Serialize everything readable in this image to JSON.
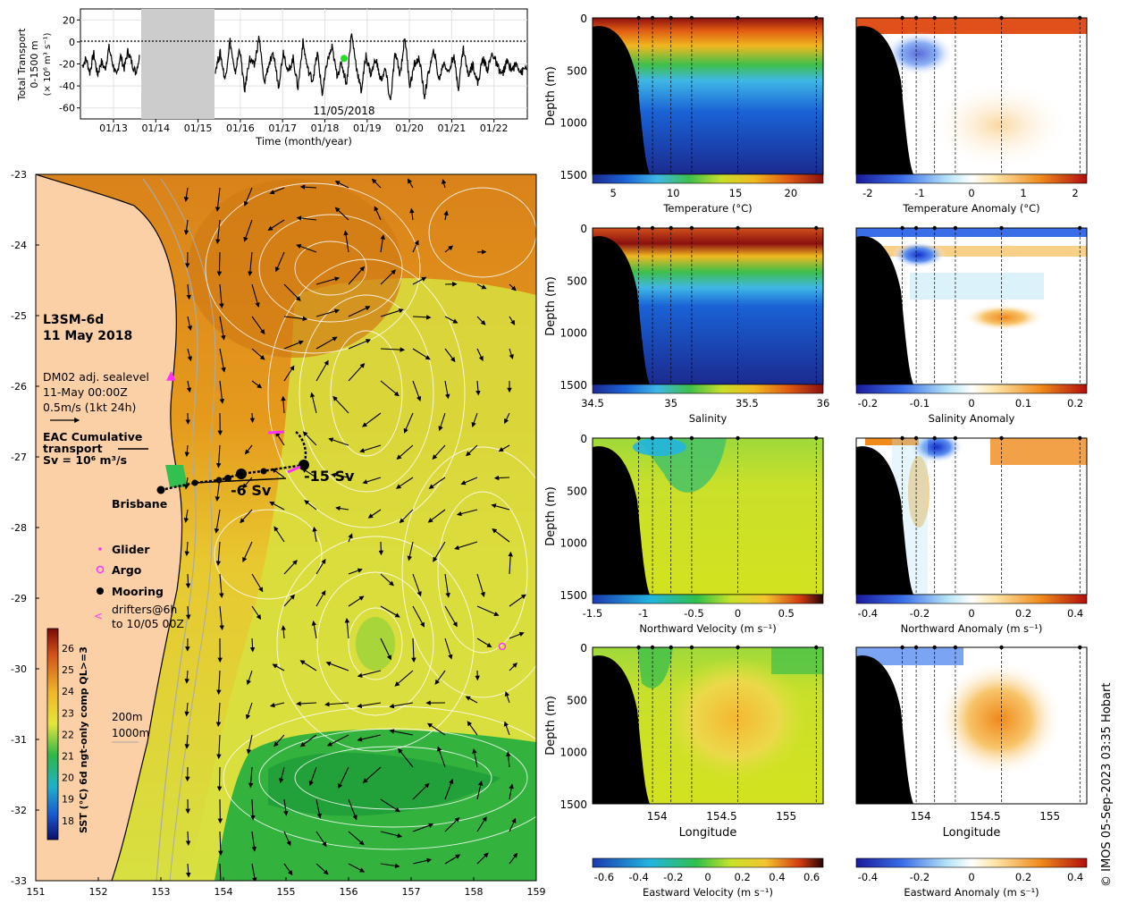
{
  "credit": "© IMOS 05-Sep-2023 03:35 Hobart",
  "colors": {
    "land": "#fcd0a6",
    "sst_warm": "#d98a14",
    "sst_mid": "#e5e35a",
    "sst_cool": "#2ea53a",
    "seamask": "#000000",
    "glider": "#ff33ff",
    "argo": "#ff33ff",
    "mooring": "#000000",
    "gap": "#cccccc"
  },
  "transport": {
    "ylabel_lines": [
      "Total Transport",
      "0-1500 m",
      "(× 10⁶ m³ s⁻¹)"
    ],
    "xlabel": "Time (month/year)",
    "date_label": "11/05/2018",
    "yticks": [
      20,
      0,
      -20,
      -40,
      -60
    ],
    "xticks": [
      "01/13",
      "01/14",
      "01/15",
      "01/16",
      "01/17",
      "01/18",
      "01/19",
      "01/20",
      "01/21",
      "01/22"
    ]
  },
  "map": {
    "title_lines": [
      "L3SM-6d",
      "11 May 2018"
    ],
    "vector_text": [
      "DM02 adj. sealevel",
      "11-May 00:00Z",
      "0.5m/s (1kt 24h)"
    ],
    "eac_lines": [
      "EAC Cumulative",
      "transport",
      "Sv = 10⁶ m³/s"
    ],
    "city": "Brisbane",
    "transport_labels": [
      "-6 Sv",
      "-15 Sv"
    ],
    "legend": [
      "Glider",
      "Argo",
      "Mooring",
      "drifters@6h",
      "to 10/05 00Z"
    ],
    "depth_legend": [
      "200m",
      "1000m"
    ],
    "colorbar_label": "SST (°C) 6d ngt-only comp QL>=3",
    "colorbar_ticks": [
      "26",
      "25",
      "24",
      "23",
      "22",
      "21",
      "20",
      "19",
      "18"
    ],
    "lat_ticks": [
      "-23",
      "-24",
      "-25",
      "-26",
      "-27",
      "-28",
      "-29",
      "-30",
      "-31",
      "-32",
      "-33"
    ],
    "lon_ticks": [
      "151",
      "152",
      "153",
      "154",
      "155",
      "156",
      "157",
      "158",
      "159"
    ]
  },
  "sections": {
    "depth_label": "Depth (m)",
    "depth_ticks": [
      "0",
      "500",
      "1000",
      "1500"
    ],
    "longitude_label": "Longitude",
    "longitude_ticks": [
      "154",
      "154.5",
      "155"
    ],
    "panels": [
      {
        "label": "Temperature (°C)",
        "ticks": [
          "5",
          "10",
          "15",
          "20"
        ]
      },
      {
        "label": "Temperature Anomaly (°C)",
        "ticks": [
          "-2",
          "-1",
          "0",
          "1",
          "2"
        ]
      },
      {
        "label": "Salinity",
        "ticks": [
          "34.5",
          "35",
          "35.5",
          "36"
        ]
      },
      {
        "label": "Salinity Anomaly",
        "ticks": [
          "-0.2",
          "-0.1",
          "0",
          "0.1",
          "0.2"
        ]
      },
      {
        "label": "Northward Velocity (m s⁻¹)",
        "ticks": [
          "-1.5",
          "-1",
          "-0.5",
          "0",
          "0.5"
        ]
      },
      {
        "label": "Northward Anomaly (m s⁻¹)",
        "ticks": [
          "-0.4",
          "-0.2",
          "0",
          "0.2",
          "0.4"
        ]
      },
      {
        "label": "Eastward Velocity (m s⁻¹)",
        "ticks": [
          "-0.6",
          "-0.4",
          "-0.2",
          "0",
          "0.2",
          "0.4",
          "0.6"
        ]
      },
      {
        "label": "Eastward Anomaly (m s⁻¹)",
        "ticks": [
          "-0.4",
          "-0.2",
          "0",
          "0.2",
          "0.4"
        ]
      }
    ]
  },
  "chart_data": {
    "type": "line",
    "title": "",
    "xlabel": "Time (month/year)",
    "ylabel": "Total Transport 0-1500 m (× 10⁶ m³ s⁻¹)",
    "ylim": [
      -70,
      30
    ],
    "x_range": [
      "2012-04",
      "2022-07"
    ],
    "gap": [
      "2013-10",
      "2015-04"
    ],
    "highlight": {
      "date": "2018-05-11",
      "value": -15
    },
    "series": [
      {
        "values": [
          -22,
          -15,
          -28,
          -10,
          -30,
          -18,
          -25,
          -5,
          -20,
          -32,
          -12,
          -24,
          -8,
          -19,
          -28,
          -14
        ]
      },
      {
        "values": [
          -25,
          -10,
          -35,
          2,
          -30,
          -5,
          -45,
          -15,
          -22,
          5,
          -38,
          -20,
          -12,
          -40,
          -8,
          -28,
          -15,
          -42,
          0,
          -25,
          -35,
          -10,
          -48,
          -18,
          -5,
          -30,
          -20,
          -38,
          8,
          -22,
          -45,
          -12,
          -30,
          -15,
          -35,
          -25,
          -55,
          -10,
          -30,
          5,
          -40,
          -20,
          -15,
          -50,
          -25,
          -8,
          -35,
          -18,
          -28,
          -12,
          -42,
          -5,
          -30,
          -20,
          -38,
          -15,
          -25,
          -10,
          -22,
          -30,
          -18,
          -25,
          -20,
          -28,
          -22
        ]
      }
    ],
    "x_label_ticks": [
      "01/13",
      "01/14",
      "01/15",
      "01/16",
      "01/17",
      "01/18",
      "01/19",
      "01/20",
      "01/21",
      "01/22"
    ]
  }
}
